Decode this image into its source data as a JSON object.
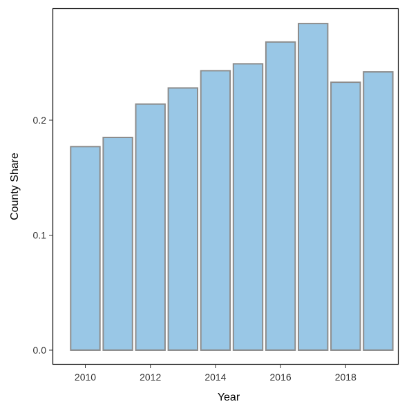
{
  "chart_data": {
    "type": "bar",
    "categories": [
      2010,
      2011,
      2012,
      2013,
      2014,
      2015,
      2016,
      2017,
      2018,
      2019
    ],
    "values": [
      0.177,
      0.185,
      0.214,
      0.228,
      0.243,
      0.249,
      0.268,
      0.284,
      0.233,
      0.242
    ],
    "xlabel": "Year",
    "ylabel": "County Share",
    "xticks": [
      "2010",
      "2012",
      "2014",
      "2016",
      "2018"
    ],
    "yticks": [
      "0.0",
      "0.1",
      "0.2"
    ],
    "ylim": [
      0,
      0.296
    ],
    "xlim": [
      2009.35,
      2019.65
    ],
    "grid": false,
    "colors": {
      "bar_fill": "#99c7e6",
      "bar_stroke": "#8c8c8c"
    }
  }
}
